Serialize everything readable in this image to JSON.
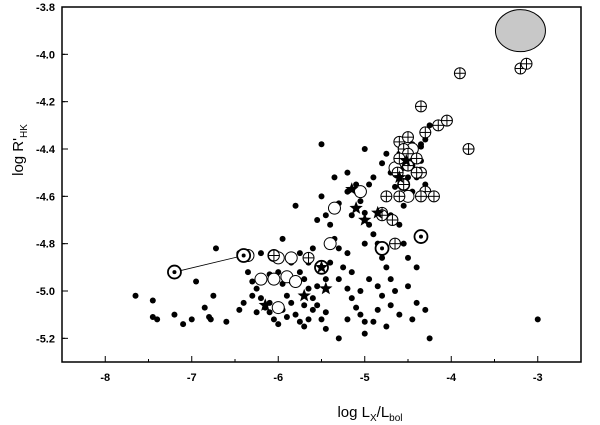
{
  "chart_data": {
    "type": "scatter",
    "title": "",
    "xlabel": {
      "main": "log L",
      "sub1": "X",
      "mid": "/L",
      "sub2": "bol"
    },
    "ylabel": {
      "main": "log R'",
      "sub": "HK"
    },
    "xlim": [
      -8.5,
      -2.5
    ],
    "ylim": [
      -5.3,
      -3.8
    ],
    "x_ticks": [
      -8,
      -7,
      -6,
      -5,
      -4,
      -3
    ],
    "x_tick_labels": [
      "-8",
      "-7",
      "-6",
      "-5",
      "-4",
      "-3"
    ],
    "y_ticks": [
      -5.2,
      -5.0,
      -4.8,
      -4.6,
      -4.4,
      -4.2,
      -4.0,
      -3.8
    ],
    "y_tick_labels": [
      "-5.2",
      "-5.0",
      "-4.8",
      "-4.6",
      "-4.4",
      "-4.2",
      "-4.0",
      "-3.8"
    ],
    "grid": false,
    "legend": "none",
    "series": [
      {
        "marker": "filled-circle",
        "points": [
          [
            -7.65,
            -5.02
          ],
          [
            -7.45,
            -5.04
          ],
          [
            -7.45,
            -5.11
          ],
          [
            -7.4,
            -5.12
          ],
          [
            -7.2,
            -5.1
          ],
          [
            -7.1,
            -5.14
          ],
          [
            -7.0,
            -5.12
          ],
          [
            -6.95,
            -4.96
          ],
          [
            -6.85,
            -5.07
          ],
          [
            -6.8,
            -5.11
          ],
          [
            -6.78,
            -5.12
          ],
          [
            -6.75,
            -5.02
          ],
          [
            -6.72,
            -4.82
          ],
          [
            -6.6,
            -5.13
          ],
          [
            -6.45,
            -4.84
          ],
          [
            -6.35,
            -4.92
          ],
          [
            -6.3,
            -4.96
          ],
          [
            -6.25,
            -4.99
          ],
          [
            -6.2,
            -5.03
          ],
          [
            -6.4,
            -5.05
          ],
          [
            -6.15,
            -5.07
          ],
          [
            -6.1,
            -5.09
          ],
          [
            -6.05,
            -5.12
          ],
          [
            -6.0,
            -5.14
          ],
          [
            -6.2,
            -4.84
          ],
          [
            -6.1,
            -4.93
          ],
          [
            -5.95,
            -4.97
          ],
          [
            -5.9,
            -5.02
          ],
          [
            -5.85,
            -5.05
          ],
          [
            -5.8,
            -5.1
          ],
          [
            -5.75,
            -5.13
          ],
          [
            -5.7,
            -5.15
          ],
          [
            -5.95,
            -4.78
          ],
          [
            -5.85,
            -4.88
          ],
          [
            -5.75,
            -4.92
          ],
          [
            -5.7,
            -4.95
          ],
          [
            -5.65,
            -4.99
          ],
          [
            -5.6,
            -5.03
          ],
          [
            -5.55,
            -5.06
          ],
          [
            -5.5,
            -5.12
          ],
          [
            -5.45,
            -5.16
          ],
          [
            -5.4,
            -4.72
          ],
          [
            -5.35,
            -4.78
          ],
          [
            -5.3,
            -4.82
          ],
          [
            -5.25,
            -4.9
          ],
          [
            -5.3,
            -4.95
          ],
          [
            -5.2,
            -4.99
          ],
          [
            -5.15,
            -5.03
          ],
          [
            -5.1,
            -5.07
          ],
          [
            -5.05,
            -5.1
          ],
          [
            -5.0,
            -5.13
          ],
          [
            -5.0,
            -5.18
          ],
          [
            -5.3,
            -5.2
          ],
          [
            -5.5,
            -4.6
          ],
          [
            -5.45,
            -4.68
          ],
          [
            -5.35,
            -4.52
          ],
          [
            -5.2,
            -4.5
          ],
          [
            -5.1,
            -4.55
          ],
          [
            -5.05,
            -4.62
          ],
          [
            -5.0,
            -4.67
          ],
          [
            -4.95,
            -4.72
          ],
          [
            -4.9,
            -4.76
          ],
          [
            -4.85,
            -4.8
          ],
          [
            -4.8,
            -4.86
          ],
          [
            -4.75,
            -4.9
          ],
          [
            -4.7,
            -4.95
          ],
          [
            -4.85,
            -4.98
          ],
          [
            -4.8,
            -5.02
          ],
          [
            -4.7,
            -5.06
          ],
          [
            -4.6,
            -5.1
          ],
          [
            -4.75,
            -5.15
          ],
          [
            -4.9,
            -5.13
          ],
          [
            -4.65,
            -4.56
          ],
          [
            -4.6,
            -4.6
          ],
          [
            -4.55,
            -4.64
          ],
          [
            -4.5,
            -4.52
          ],
          [
            -4.45,
            -4.47
          ],
          [
            -4.4,
            -4.43
          ],
          [
            -4.35,
            -4.39
          ],
          [
            -4.3,
            -4.36
          ],
          [
            -4.25,
            -4.3
          ],
          [
            -4.45,
            -4.58
          ],
          [
            -4.4,
            -4.52
          ],
          [
            -4.7,
            -4.68
          ],
          [
            -4.6,
            -4.72
          ],
          [
            -4.55,
            -4.8
          ],
          [
            -4.5,
            -4.86
          ],
          [
            -4.4,
            -4.9
          ],
          [
            -4.5,
            -4.98
          ],
          [
            -4.4,
            -5.05
          ],
          [
            -4.3,
            -5.08
          ],
          [
            -5.8,
            -4.64
          ],
          [
            -5.6,
            -4.82
          ],
          [
            -5.4,
            -4.88
          ],
          [
            -5.2,
            -4.84
          ],
          [
            -5.0,
            -4.8
          ],
          [
            -5.3,
            -4.63
          ],
          [
            -5.2,
            -4.58
          ],
          [
            -4.95,
            -4.55
          ],
          [
            -4.9,
            -4.52
          ],
          [
            -4.8,
            -4.46
          ],
          [
            -4.75,
            -4.42
          ],
          [
            -4.7,
            -4.5
          ],
          [
            -5.45,
            -4.95
          ],
          [
            -6.0,
            -4.92
          ],
          [
            -5.65,
            -4.88
          ],
          [
            -6.1,
            -5.05
          ],
          [
            -5.95,
            -5.08
          ],
          [
            -5.6,
            -5.08
          ],
          [
            -5.2,
            -5.12
          ],
          [
            -4.95,
            -4.95
          ],
          [
            -4.65,
            -5.0
          ],
          [
            -4.45,
            -5.12
          ],
          [
            -4.25,
            -5.2
          ],
          [
            -3.0,
            -5.12
          ],
          [
            -5.15,
            -4.68
          ],
          [
            -5.5,
            -4.38
          ],
          [
            -5.0,
            -4.4
          ],
          [
            -4.35,
            -4.45
          ],
          [
            -4.3,
            -4.55
          ],
          [
            -4.6,
            -4.42
          ],
          [
            -4.55,
            -4.48
          ],
          [
            -4.45,
            -4.38
          ],
          [
            -4.35,
            -4.38
          ],
          [
            -5.55,
            -4.98
          ],
          [
            -5.75,
            -4.84
          ],
          [
            -6.3,
            -5.02
          ],
          [
            -5.85,
            -4.96
          ],
          [
            -5.15,
            -4.92
          ],
          [
            -5.05,
            -5.0
          ],
          [
            -4.85,
            -5.08
          ],
          [
            -6.25,
            -5.09
          ],
          [
            -6.45,
            -5.08
          ],
          [
            -5.7,
            -5.06
          ],
          [
            -5.45,
            -5.09
          ],
          [
            -5.9,
            -5.11
          ],
          [
            -6.05,
            -4.86
          ],
          [
            -5.55,
            -4.7
          ],
          [
            -5.65,
            -5.12
          ]
        ]
      },
      {
        "marker": "open-circle",
        "points": [
          [
            -6.38,
            -4.85
          ],
          [
            -6.35,
            -4.85
          ],
          [
            -6.05,
            -4.85
          ],
          [
            -6.0,
            -4.86
          ],
          [
            -5.85,
            -4.86
          ],
          [
            -5.9,
            -4.94
          ],
          [
            -6.05,
            -4.95
          ],
          [
            -5.8,
            -4.96
          ],
          [
            -5.5,
            -4.9
          ],
          [
            -5.4,
            -4.8
          ],
          [
            -5.35,
            -4.65
          ],
          [
            -5.05,
            -4.58
          ],
          [
            -4.65,
            -4.48
          ],
          [
            -4.55,
            -4.55
          ],
          [
            -4.45,
            -4.4
          ],
          [
            -4.5,
            -4.6
          ],
          [
            -6.2,
            -4.95
          ],
          [
            -6.0,
            -5.07
          ]
        ]
      },
      {
        "marker": "circle-plus",
        "points": [
          [
            -3.2,
            -4.06
          ],
          [
            -3.13,
            -4.04
          ],
          [
            -3.9,
            -4.08
          ],
          [
            -4.35,
            -4.22
          ],
          [
            -4.3,
            -4.33
          ],
          [
            -4.15,
            -4.3
          ],
          [
            -4.05,
            -4.28
          ],
          [
            -3.8,
            -4.4
          ],
          [
            -4.6,
            -4.37
          ],
          [
            -4.55,
            -4.4
          ],
          [
            -4.5,
            -4.42
          ],
          [
            -4.6,
            -4.44
          ],
          [
            -4.5,
            -4.47
          ],
          [
            -4.4,
            -4.44
          ],
          [
            -4.62,
            -4.5
          ],
          [
            -4.55,
            -4.55
          ],
          [
            -4.35,
            -4.5
          ],
          [
            -4.3,
            -4.58
          ],
          [
            -4.6,
            -4.6
          ],
          [
            -4.75,
            -4.6
          ],
          [
            -4.8,
            -4.67
          ],
          [
            -4.68,
            -4.7
          ],
          [
            -4.35,
            -4.6
          ],
          [
            -4.2,
            -4.6
          ],
          [
            -4.65,
            -4.8
          ],
          [
            -5.65,
            -4.86
          ],
          [
            -6.05,
            -4.85
          ],
          [
            -4.8,
            -4.68
          ],
          [
            -4.4,
            -4.5
          ],
          [
            -4.5,
            -4.35
          ]
        ]
      },
      {
        "marker": "circle-dot",
        "points": [
          [
            -7.2,
            -4.92
          ],
          [
            -6.4,
            -4.85
          ],
          [
            -4.8,
            -4.82
          ],
          [
            -4.35,
            -4.77
          ],
          [
            -5.5,
            -4.9
          ]
        ]
      },
      {
        "marker": "star",
        "points": [
          [
            -5.15,
            -4.57
          ],
          [
            -5.1,
            -4.65
          ],
          [
            -5.0,
            -4.7
          ],
          [
            -4.85,
            -4.67
          ],
          [
            -5.5,
            -4.9
          ],
          [
            -6.15,
            -5.06
          ],
          [
            -5.7,
            -5.02
          ],
          [
            -5.45,
            -4.99
          ],
          [
            -4.6,
            -4.52
          ],
          [
            -4.52,
            -4.45
          ]
        ]
      },
      {
        "marker": "filled-ellipse",
        "points": [
          [
            -3.2,
            -3.9
          ]
        ]
      }
    ],
    "annotations": [
      {
        "type": "connector-line",
        "from": [
          -7.2,
          -4.92
        ],
        "to": [
          -6.4,
          -4.85
        ]
      }
    ]
  }
}
